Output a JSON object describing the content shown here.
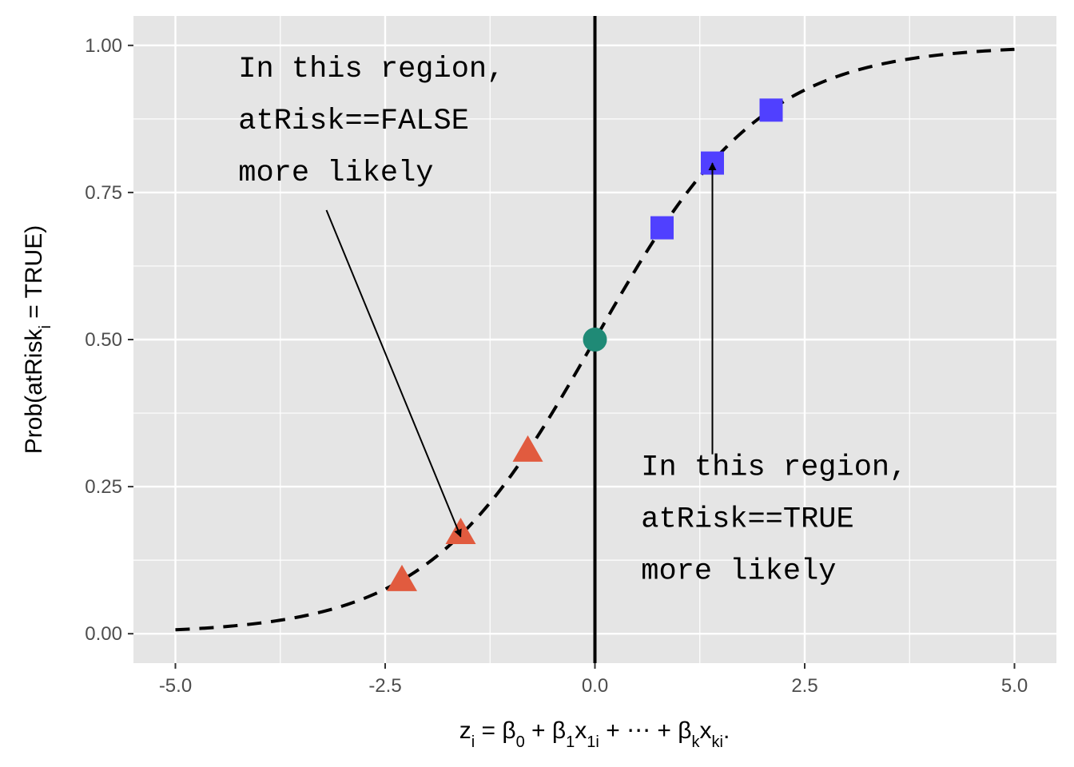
{
  "chart_data": {
    "type": "line",
    "xlabel": {
      "parts": [
        {
          "t": "z"
        },
        {
          "t": "i",
          "sub": true
        },
        {
          "t": " = β"
        },
        {
          "t": "0",
          "sub": true
        },
        {
          "t": " + β"
        },
        {
          "t": "1",
          "sub": true
        },
        {
          "t": "x"
        },
        {
          "t": "1i",
          "sub": true
        },
        {
          "t": " + ⋯ + β"
        },
        {
          "t": "k",
          "sub": true
        },
        {
          "t": "x"
        },
        {
          "t": "ki",
          "sub": true
        },
        {
          "t": "."
        }
      ]
    },
    "ylabel": {
      "parts": [
        {
          "t": "Prob(atRisk"
        },
        {
          "t": "i",
          "sub": true
        },
        {
          "t": " = TRUE)"
        }
      ]
    },
    "xlim": [
      -5.5,
      5.5
    ],
    "ylim": [
      -0.05,
      1.05
    ],
    "x_ticks": [
      -5.0,
      -2.5,
      0.0,
      2.5,
      5.0
    ],
    "x_tick_labels": [
      "-5.0",
      "-2.5",
      "0.0",
      "2.5",
      "5.0"
    ],
    "y_ticks": [
      0.0,
      0.25,
      0.5,
      0.75,
      1.0
    ],
    "y_tick_labels": [
      "0.00",
      "0.25",
      "0.50",
      "0.75",
      "1.00"
    ],
    "grid": true,
    "background_color": "#e5e5e5",
    "curve": {
      "function": "logistic",
      "x_range": [
        -5,
        5
      ],
      "style": "dashed",
      "color": "#000000"
    },
    "vline": {
      "x": 0,
      "color": "#000000"
    },
    "series": [
      {
        "marker": "triangle",
        "color": "#e15b3f",
        "points": [
          [
            -2.3,
            0.09
          ],
          [
            -1.6,
            0.17
          ],
          [
            -0.8,
            0.31
          ]
        ]
      },
      {
        "marker": "circle",
        "color": "#1f8a76",
        "points": [
          [
            0.0,
            0.5
          ]
        ]
      },
      {
        "marker": "square",
        "color": "#5040ff",
        "points": [
          [
            0.8,
            0.69
          ],
          [
            1.4,
            0.8
          ],
          [
            2.1,
            0.89
          ]
        ]
      }
    ],
    "annotations": [
      {
        "lines": [
          "In this region,",
          "atRisk==FALSE",
          "more likely"
        ],
        "x": -4.25,
        "y": 0.947,
        "arrow_from": [
          -3.2,
          0.72
        ],
        "arrow_to": [
          -1.6,
          0.165
        ]
      },
      {
        "lines": [
          "In this region,",
          "atRisk==TRUE",
          "more likely"
        ],
        "x": 0.55,
        "y": 0.27,
        "arrow_from": [
          1.4,
          0.305
        ],
        "arrow_to": [
          1.4,
          0.8
        ]
      }
    ]
  }
}
